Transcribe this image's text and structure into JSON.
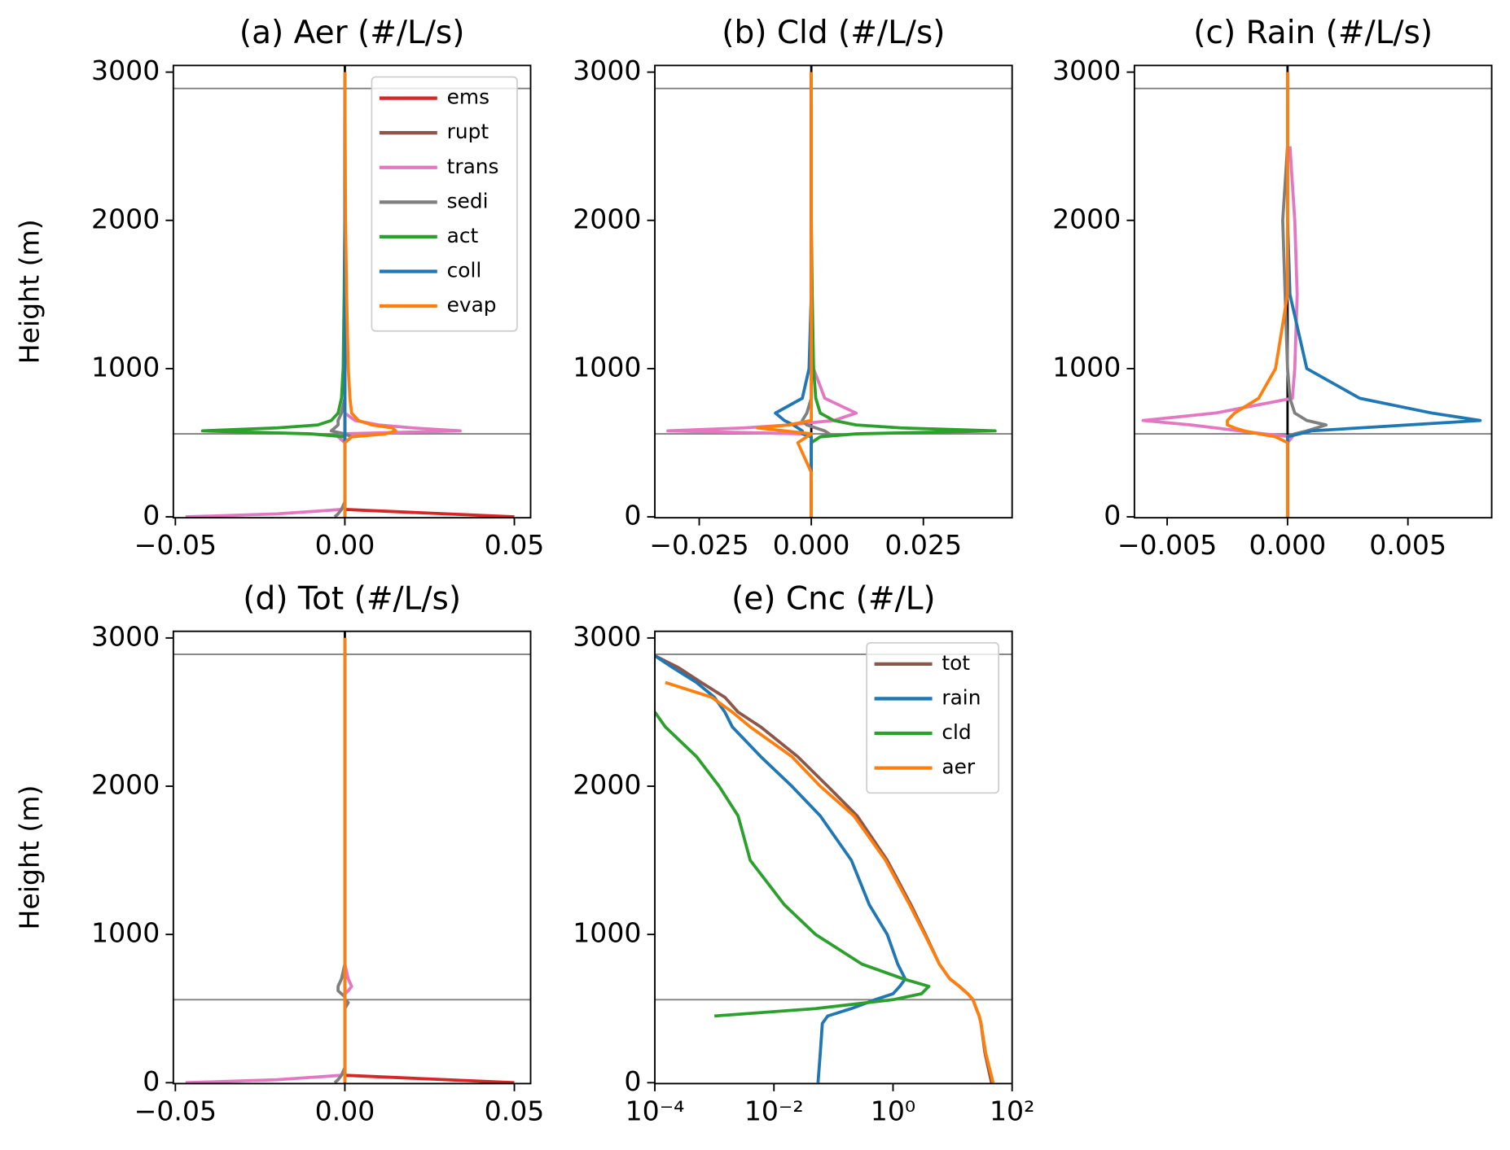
{
  "chart_data": [
    {
      "type": "line",
      "title": "(a) Aer (#/L/s)",
      "y_label": "Height (m)",
      "legend": "upper right",
      "y": [
        0,
        20,
        50,
        100,
        300,
        500,
        540,
        560,
        580,
        600,
        620,
        650,
        700,
        800,
        1000,
        1500,
        2000,
        2500,
        3000
      ],
      "xlim": [
        -0.0506,
        0.0548
      ],
      "xticks": [
        {
          "value": -0.05,
          "label": "−0.05"
        },
        {
          "value": 0,
          "label": "0.00"
        },
        0.05
      ],
      "ylim": [
        -6,
        3045
      ],
      "yticks": [
        0,
        1000,
        2000,
        3000
      ],
      "hlines": [
        560,
        2890
      ],
      "vline": 0,
      "series": [
        {
          "name": "ems",
          "color": "#d62728",
          "values": [
            0.05,
            0.03,
            0,
            0,
            0,
            0,
            0,
            0,
            0,
            0,
            0,
            0,
            0,
            0,
            0,
            0,
            0,
            0,
            0
          ]
        },
        {
          "name": "rupt",
          "color": "#8c564b",
          "values": [
            0,
            0,
            0,
            0,
            0,
            0,
            0,
            0,
            0,
            0,
            0,
            0,
            0,
            0,
            0,
            0,
            0,
            0,
            0
          ]
        },
        {
          "name": "trans",
          "color": "#e377c2",
          "values": [
            -0.047,
            -0.02,
            -0.001,
            0,
            0,
            0,
            -0.002,
            -0.001,
            0.034,
            0.02,
            0.01,
            0.003,
            0,
            0,
            0,
            0,
            0,
            0,
            0
          ]
        },
        {
          "name": "sedi",
          "color": "#7f7f7f",
          "values": [
            -0.003,
            -0.002,
            -0.001,
            0,
            0,
            0,
            0.002,
            0,
            -0.004,
            -0.003,
            -0.002,
            -0.002,
            -0.001,
            0,
            0,
            0,
            0,
            0,
            0
          ]
        },
        {
          "name": "act",
          "color": "#2ca02c",
          "values": [
            0,
            0,
            0,
            0,
            0,
            0,
            0,
            -0.01,
            -0.042,
            -0.02,
            -0.008,
            -0.004,
            -0.002,
            -0.001,
            -0.0005,
            -0.0002,
            0,
            0,
            0
          ]
        },
        {
          "name": "coll",
          "color": "#1f77b4",
          "values": [
            0,
            0,
            0,
            0,
            0,
            0,
            0,
            0,
            0,
            0,
            0,
            0,
            0,
            0,
            0,
            0,
            0,
            0,
            0
          ]
        },
        {
          "name": "evap",
          "color": "#ff7f0e",
          "values": [
            0,
            0,
            0,
            0,
            0,
            0,
            0.002,
            0.012,
            0.015,
            0.014,
            0.008,
            0.004,
            0.002,
            0.0015,
            0.001,
            0.0005,
            0.0002,
            0.0001,
            0
          ]
        }
      ]
    },
    {
      "type": "line",
      "title": "(b) Cld (#/L/s)",
      "y": [
        0,
        20,
        50,
        100,
        300,
        500,
        540,
        560,
        580,
        600,
        620,
        650,
        700,
        800,
        1000,
        1500,
        2000,
        2500,
        3000
      ],
      "xlim": [
        -0.0349,
        0.0448
      ],
      "xticks": [
        {
          "value": -0.025,
          "label": "−0.025"
        },
        {
          "value": 0,
          "label": "0.000"
        },
        0.025
      ],
      "ylim": [
        -6,
        3045
      ],
      "yticks": [
        0,
        1000,
        2000,
        3000
      ],
      "hlines": [
        560,
        2890
      ],
      "vline": 0,
      "series": [
        {
          "color": "#e377c2",
          "values": [
            0,
            0,
            0,
            0,
            0,
            0,
            0,
            -0.002,
            -0.032,
            -0.015,
            -0.005,
            0.005,
            0.01,
            0.003,
            0.0005,
            0,
            0,
            0,
            0
          ]
        },
        {
          "color": "#7f7f7f",
          "values": [
            0,
            0,
            0,
            0,
            0,
            0,
            0.002,
            0.004,
            0.003,
            0.001,
            -0.001,
            -0.002,
            -0.001,
            0,
            0,
            0,
            0,
            0,
            0
          ]
        },
        {
          "color": "#2ca02c",
          "values": [
            0,
            0,
            0,
            0,
            0,
            0,
            0.002,
            0.01,
            0.041,
            0.02,
            0.01,
            0.005,
            0.002,
            0.001,
            0.0005,
            0.0002,
            0,
            0,
            0
          ]
        },
        {
          "color": "#1f77b4",
          "values": [
            0,
            0,
            0,
            0,
            0,
            0,
            0,
            -0.002,
            -0.002,
            -0.003,
            -0.004,
            -0.006,
            -0.008,
            -0.002,
            -0.0005,
            0,
            0,
            0,
            0
          ]
        },
        {
          "color": "#ff7f0e",
          "values": [
            0,
            0,
            0,
            0,
            0,
            -0.003,
            -0.001,
            0,
            -0.006,
            -0.012,
            -0.005,
            0,
            0,
            0,
            0,
            0,
            0,
            0,
            0
          ]
        }
      ]
    },
    {
      "type": "line",
      "title": "(c) Rain (#/L/s)",
      "y": [
        0,
        20,
        50,
        100,
        300,
        500,
        540,
        560,
        580,
        600,
        620,
        650,
        700,
        800,
        1000,
        1500,
        2000,
        2500,
        3000
      ],
      "xlim": [
        -0.00636,
        0.00848
      ],
      "xticks": [
        {
          "value": -0.005,
          "label": "−0.005"
        },
        {
          "value": 0,
          "label": "0.000"
        },
        0.005
      ],
      "ylim": [
        -6,
        3045
      ],
      "yticks": [
        0,
        1000,
        2000,
        3000
      ],
      "hlines": [
        560,
        2890
      ],
      "vline": 0,
      "series": [
        {
          "color": "#e377c2",
          "values": [
            0,
            0,
            0,
            0,
            0,
            0,
            0.0002,
            -0.001,
            -0.002,
            -0.003,
            -0.004,
            -0.006,
            -0.003,
            0.0002,
            0.0003,
            0.0004,
            0.0003,
            0.0001,
            null
          ]
        },
        {
          "color": "#7f7f7f",
          "values": [
            0,
            0,
            0,
            0,
            0,
            0,
            0,
            0.0003,
            0.0008,
            0.0012,
            0.0016,
            0.0008,
            0.0003,
            0.0001,
            0,
            -0.0001,
            -0.0002,
            0,
            null
          ]
        },
        {
          "color": "#1f77b4",
          "values": [
            0,
            0,
            0,
            0,
            0,
            0,
            0,
            0.0005,
            0.001,
            0.003,
            0.005,
            0.008,
            0.006,
            0.003,
            0.0008,
            0.0001,
            0,
            0,
            0
          ]
        },
        {
          "color": "#ff7f0e",
          "values": [
            0,
            0,
            0,
            0,
            0,
            0,
            -0.0005,
            -0.0012,
            -0.0018,
            -0.0022,
            -0.0025,
            -0.0025,
            -0.0022,
            -0.0012,
            -0.0005,
            0,
            0,
            0,
            0
          ]
        }
      ]
    },
    {
      "type": "line",
      "title": "(d) Tot (#/L/s)",
      "y_label": "Height (m)",
      "y": [
        0,
        20,
        50,
        100,
        300,
        500,
        540,
        560,
        580,
        600,
        620,
        650,
        700,
        800,
        1000,
        1500,
        2000,
        2500,
        3000
      ],
      "xlim": [
        -0.0506,
        0.0548
      ],
      "xticks": [
        {
          "value": -0.05,
          "label": "−0.05"
        },
        {
          "value": 0,
          "label": "0.00"
        },
        0.05
      ],
      "ylim": [
        -6,
        3045
      ],
      "yticks": [
        0,
        1000,
        2000,
        3000
      ],
      "hlines": [
        560,
        2890
      ],
      "vline": 0,
      "series": [
        {
          "color": "#d62728",
          "values": [
            0.05,
            0.03,
            0,
            0,
            0,
            0,
            0,
            0,
            0,
            0,
            0,
            0,
            0,
            0,
            0,
            0,
            0,
            0,
            0
          ]
        },
        {
          "color": "#e377c2",
          "values": [
            -0.047,
            -0.02,
            -0.001,
            0,
            0,
            0,
            0,
            0,
            0,
            0,
            0.001,
            0.002,
            0.001,
            0,
            0,
            0,
            0,
            0,
            0
          ]
        },
        {
          "color": "#7f7f7f",
          "values": [
            -0.003,
            -0.002,
            -0.001,
            0,
            0,
            0,
            0.001,
            0,
            0,
            -0.001,
            -0.002,
            -0.002,
            -0.001,
            0,
            0,
            0,
            0,
            0,
            0
          ]
        },
        {
          "color": "#ff7f0e",
          "values": [
            0,
            0,
            0,
            0,
            0,
            0,
            0,
            0,
            0,
            0,
            0,
            0,
            0,
            0,
            0,
            0,
            0,
            0,
            0
          ]
        }
      ]
    },
    {
      "type": "line",
      "title": "(e) Cnc (#/L)",
      "legend": "upper right",
      "xlog": true,
      "y": [
        0,
        200,
        400,
        450,
        500,
        560,
        600,
        650,
        700,
        800,
        1000,
        1200,
        1500,
        1800,
        2000,
        2200,
        2400,
        2500,
        2600,
        2700,
        2800,
        2880
      ],
      "xlim": [
        0.0001,
        100
      ],
      "xticks": [
        {
          "value": 0.0001,
          "label": "10⁻⁴"
        },
        {
          "value": 0.01,
          "label": "10⁻²"
        },
        {
          "value": 1,
          "label": "10⁰"
        },
        {
          "value": 100,
          "label": "10²"
        }
      ],
      "ylim": [
        -6,
        3045
      ],
      "yticks": [
        0,
        1000,
        2000,
        3000
      ],
      "hlines": [
        560,
        2890
      ],
      "series": [
        {
          "name": "tot",
          "color": "#8c564b",
          "values": [
            45,
            35,
            30,
            28,
            25,
            22,
            18,
            13,
            9,
            6,
            3.5,
            2,
            0.8,
            0.25,
            0.08,
            0.025,
            0.006,
            0.0025,
            0.0015,
            0.0006,
            0.00025,
            0.0001
          ]
        },
        {
          "name": "rain",
          "color": "#1f77b4",
          "values": [
            0.055,
            0.06,
            0.065,
            0.08,
            0.2,
            0.5,
            1,
            1.3,
            1.6,
            1.2,
            0.8,
            0.4,
            0.2,
            0.06,
            0.02,
            0.006,
            0.002,
            0.0015,
            0.001,
            0.0005,
            0.0002,
            0.0001
          ]
        },
        {
          "name": "cld",
          "color": "#2ca02c",
          "values": [
            null,
            null,
            null,
            0.001,
            0.05,
            1,
            3,
            4,
            1.5,
            0.3,
            0.05,
            0.015,
            0.004,
            0.0025,
            0.0012,
            0.0005,
            0.00015,
            0.0001,
            null,
            null,
            null,
            null
          ]
        },
        {
          "name": "aer",
          "color": "#ff7f0e",
          "values": [
            48,
            36,
            30,
            28,
            25,
            22,
            18,
            13,
            9,
            6,
            3.4,
            1.9,
            0.75,
            0.22,
            0.06,
            0.02,
            0.004,
            0.002,
            0.0009,
            0.00015,
            null,
            null
          ]
        }
      ]
    }
  ]
}
